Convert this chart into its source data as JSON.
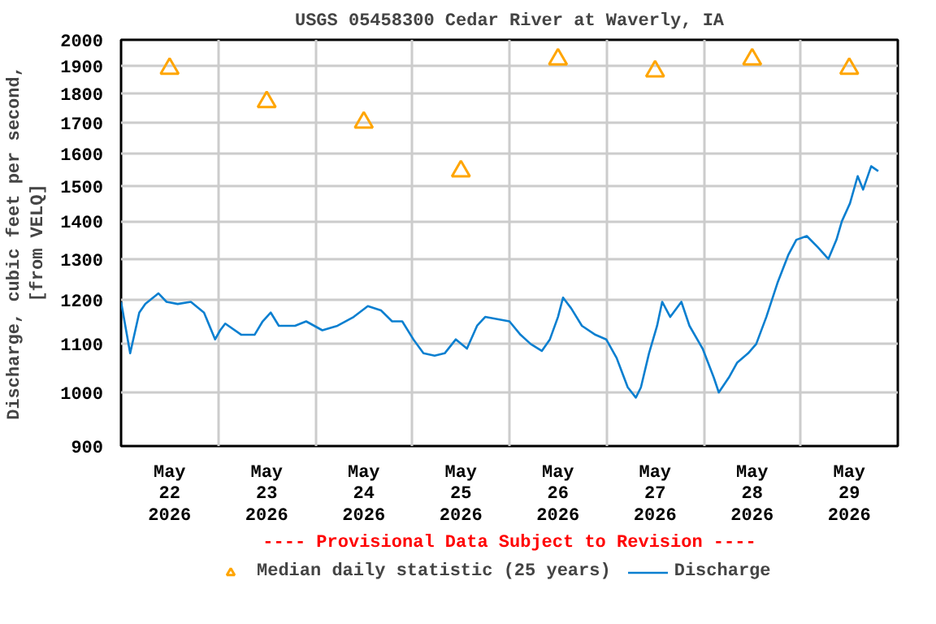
{
  "chart_data": {
    "type": "line",
    "title": "USGS 05458300 Cedar River at Waverly, IA",
    "ylabel": "Discharge, cubic feet per second, [from VELQ]",
    "annotations": [
      "---- Provisional Data Subject to Revision ----"
    ],
    "log": "y",
    "grid": true,
    "legend": "bottom",
    "xlim": [
      "2026-05-22T00:00",
      "2026-05-30T00:00"
    ],
    "xticks": [
      {
        "value": "2026-05-22T00:00",
        "label": null
      },
      {
        "value": "2026-05-22T12:00",
        "label": "May\n22\n2026"
      },
      {
        "value": "2026-05-23T00:00",
        "label": null
      },
      {
        "value": "2026-05-23T12:00",
        "label": "May\n23\n2026"
      },
      {
        "value": "2026-05-24T00:00",
        "label": null
      },
      {
        "value": "2026-05-24T12:00",
        "label": "May\n24\n2026"
      },
      {
        "value": "2026-05-25T00:00",
        "label": null
      },
      {
        "value": "2026-05-25T12:00",
        "label": "May\n25\n2026"
      },
      {
        "value": "2026-05-26T00:00",
        "label": null
      },
      {
        "value": "2026-05-26T12:00",
        "label": "May\n26\n2026"
      },
      {
        "value": "2026-05-27T00:00",
        "label": null
      },
      {
        "value": "2026-05-27T12:00",
        "label": "May\n27\n2026"
      },
      {
        "value": "2026-05-28T00:00",
        "label": null
      },
      {
        "value": "2026-05-28T12:00",
        "label": "May\n28\n2026"
      },
      {
        "value": "2026-05-29T00:00",
        "label": null
      },
      {
        "value": "2026-05-29T12:00",
        "label": "May\n29\n2026"
      },
      {
        "value": "2026-05-30T00:00",
        "label": null
      }
    ],
    "ylim": [
      900,
      2000
    ],
    "yticks": [
      900,
      1000,
      1100,
      1200,
      1300,
      1400,
      1500,
      1600,
      1700,
      1800,
      1900,
      2000
    ],
    "series": [
      {
        "name": "Median daily statistic (25 years)",
        "type": "scatter",
        "marker": "triangle",
        "color": "#ffa500",
        "x": [
          "2026-05-22T12:00",
          "2026-05-23T12:00",
          "2026-05-24T12:00",
          "2026-05-25T12:00",
          "2026-05-26T12:00",
          "2026-05-27T12:00",
          "2026-05-28T12:00",
          "2026-05-29T12:00"
        ],
        "values": [
          1890,
          1770,
          1700,
          1545,
          1925,
          1880,
          1925,
          1890
        ]
      },
      {
        "name": "Discharge",
        "line_style": "solid",
        "color": "#0a7fd0",
        "x": [
          "2026-05-22T00:00",
          "2026-05-22T02:15",
          "2026-05-22T04:30",
          "2026-05-22T06:00",
          "2026-05-22T09:15",
          "2026-05-22T11:15",
          "2026-05-22T14:00",
          "2026-05-22T17:15",
          "2026-05-22T20:30",
          "2026-05-22T23:15",
          "2026-05-23T00:30",
          "2026-05-23T01:45",
          "2026-05-23T05:45",
          "2026-05-23T09:00",
          "2026-05-23T11:00",
          "2026-05-23T13:00",
          "2026-05-23T15:00",
          "2026-05-23T19:00",
          "2026-05-23T21:45",
          "2026-05-24T01:45",
          "2026-05-24T05:30",
          "2026-05-24T09:30",
          "2026-05-24T13:00",
          "2026-05-24T16:15",
          "2026-05-24T19:00",
          "2026-05-24T21:30",
          "2026-05-25T00:15",
          "2026-05-25T02:45",
          "2026-05-25T05:30",
          "2026-05-25T08:00",
          "2026-05-25T10:45",
          "2026-05-25T13:30",
          "2026-05-25T16:00",
          "2026-05-25T18:00",
          "2026-05-26T00:00",
          "2026-05-26T02:45",
          "2026-05-26T05:15",
          "2026-05-26T08:00",
          "2026-05-26T10:00",
          "2026-05-26T12:00",
          "2026-05-26T13:15",
          "2026-05-26T15:15",
          "2026-05-26T17:55",
          "2026-05-26T21:15",
          "2026-05-26T23:55",
          "2026-05-27T02:30",
          "2026-05-27T05:15",
          "2026-05-27T07:15",
          "2026-05-27T08:30",
          "2026-05-27T10:30",
          "2026-05-27T12:30",
          "2026-05-27T13:45",
          "2026-05-27T15:45",
          "2026-05-27T18:30",
          "2026-05-27T20:30",
          "2026-05-27T23:45",
          "2026-05-28T02:30",
          "2026-05-28T03:45",
          "2026-05-28T06:15",
          "2026-05-28T08:15",
          "2026-05-28T11:00",
          "2026-05-28T13:00",
          "2026-05-28T15:30",
          "2026-05-28T18:15",
          "2026-05-28T20:55",
          "2026-05-28T22:55",
          "2026-05-29T01:30",
          "2026-05-29T04:15",
          "2026-05-29T06:50",
          "2026-05-29T08:50",
          "2026-05-29T10:10",
          "2026-05-29T12:10",
          "2026-05-29T14:05",
          "2026-05-29T15:25",
          "2026-05-29T17:25",
          "2026-05-29T19:10"
        ],
        "values": [
          1195,
          1080,
          1170,
          1190,
          1215,
          1195,
          1190,
          1195,
          1170,
          1110,
          1130,
          1145,
          1120,
          1120,
          1150,
          1170,
          1140,
          1140,
          1150,
          1130,
          1140,
          1160,
          1185,
          1175,
          1150,
          1150,
          1110,
          1080,
          1075,
          1080,
          1110,
          1090,
          1140,
          1160,
          1150,
          1120,
          1100,
          1085,
          1110,
          1160,
          1205,
          1180,
          1140,
          1120,
          1110,
          1070,
          1010,
          990,
          1010,
          1080,
          1140,
          1195,
          1160,
          1195,
          1140,
          1090,
          1030,
          1000,
          1030,
          1060,
          1080,
          1100,
          1160,
          1240,
          1310,
          1350,
          1360,
          1330,
          1300,
          1350,
          1400,
          1450,
          1530,
          1490,
          1560,
          1545
        ]
      }
    ]
  }
}
